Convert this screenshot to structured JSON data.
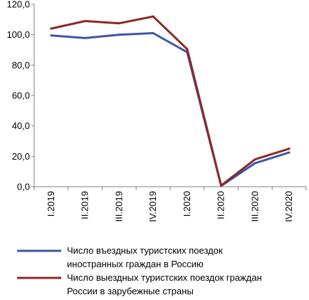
{
  "chart_data": {
    "type": "line",
    "categories": [
      "I.2019",
      "II.2019",
      "III.2019",
      "IV.2019",
      "I.2020",
      "II.2020",
      "III.2020",
      "IV.2020"
    ],
    "series": [
      {
        "name": "Число въездных туристских поездок иностранных граждан в Россию",
        "name_lines": [
          "Число въездных туристских поездок",
          "иностранных граждан в Россию"
        ],
        "color": "#3f56a6",
        "values": [
          99.5,
          97.8,
          100.0,
          101.0,
          88.5,
          0.5,
          15.5,
          22.5
        ]
      },
      {
        "name": "Число выездных туристских поездок граждан России в зарубежные страны",
        "name_lines": [
          "Число выездных туристских поездок граждан",
          "России в зарубежные страны"
        ],
        "color": "#8b2a24",
        "values": [
          104.0,
          109.0,
          107.5,
          112.0,
          90.5,
          0.8,
          18.0,
          25.0
        ]
      }
    ],
    "yticks": [
      "0,0",
      "20,0",
      "40,0",
      "60,0",
      "80,0",
      "100,0",
      "120,0"
    ],
    "ylim": [
      0,
      120
    ],
    "grid": false,
    "legend_position": "bottom"
  }
}
